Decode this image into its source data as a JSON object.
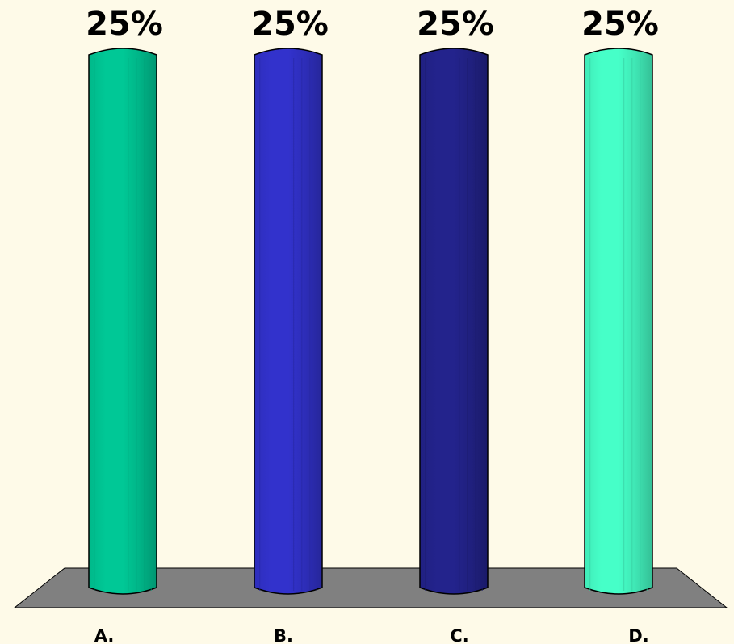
{
  "chart_data": {
    "type": "bar",
    "categories": [
      "A.",
      "B.",
      "C.",
      "D."
    ],
    "values": [
      25,
      25,
      25,
      25
    ],
    "value_labels": [
      "25%",
      "25%",
      "25%",
      "25%"
    ],
    "ylim": [
      0,
      25
    ],
    "title": "",
    "xlabel": "",
    "ylabel": "",
    "grid": false,
    "legend": "none",
    "style": "3d-cylinder",
    "colors": [
      "#00c896",
      "#3232cc",
      "#23238c",
      "#46ffc8"
    ],
    "background": "#fefae8",
    "floor_color": "#808080"
  }
}
